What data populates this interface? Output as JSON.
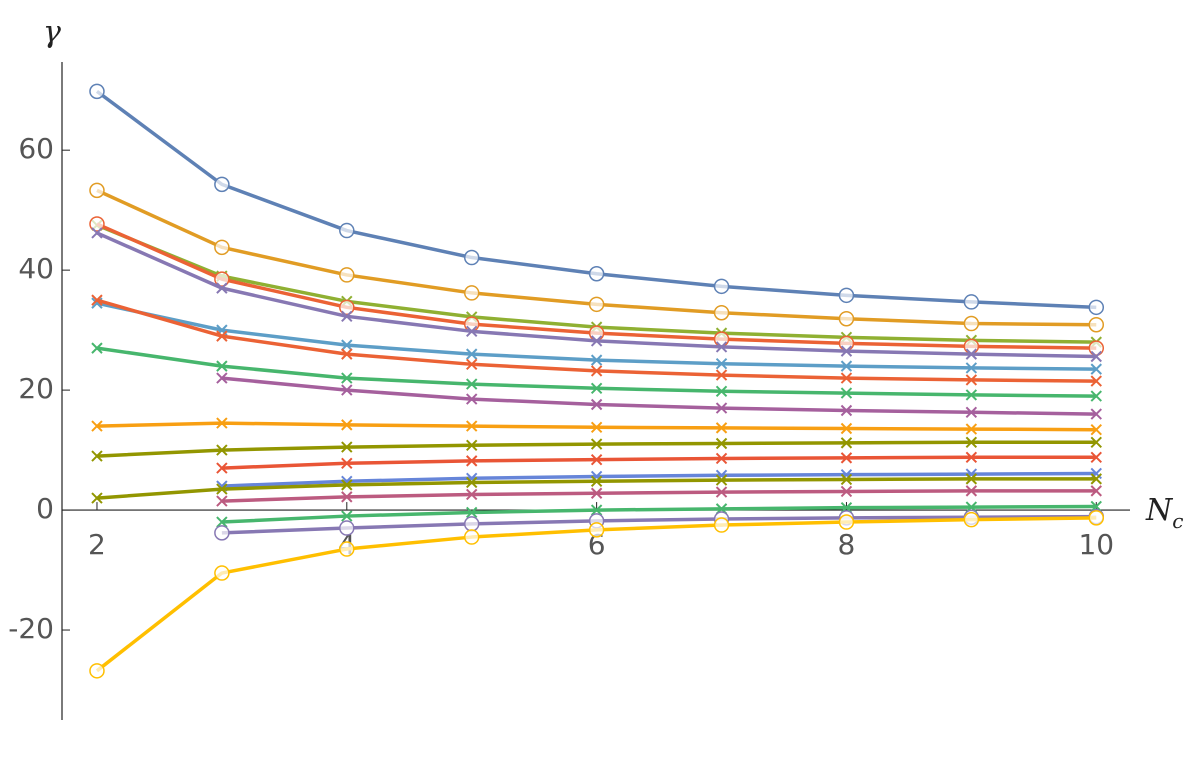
{
  "chart_data": {
    "type": "line",
    "y_label": "γ",
    "x_label": {
      "main": "N",
      "sub": "c"
    },
    "xlim": [
      1.72,
      10.27
    ],
    "ylim": [
      -35,
      74.7
    ],
    "xticks": [
      2,
      4,
      6,
      8,
      10
    ],
    "yticks": [
      -20,
      0,
      20,
      40,
      60
    ],
    "x": [
      2,
      3,
      4,
      5,
      6,
      7,
      8,
      9,
      10
    ],
    "series": [
      {
        "color": "#5e81b5",
        "marker": "circle",
        "values": [
          69.8,
          54.3,
          46.6,
          42.1,
          39.4,
          37.3,
          35.8,
          34.7,
          33.8
        ]
      },
      {
        "color": "#e19c24",
        "marker": "circle",
        "values": [
          53.3,
          43.8,
          39.2,
          36.2,
          34.3,
          32.9,
          31.9,
          31.1,
          30.9
        ]
      },
      {
        "color": "#8fb032",
        "marker": "x",
        "values": [
          47.5,
          39,
          34.8,
          32.2,
          30.5,
          29.5,
          28.8,
          28.3,
          28
        ]
      },
      {
        "color": "#eb6235",
        "marker": "circle",
        "values": [
          47.7,
          38.5,
          33.8,
          31,
          29.5,
          28.5,
          27.8,
          27.3,
          27
        ]
      },
      {
        "color": "#8778b3",
        "marker": "x",
        "values": [
          46.2,
          37,
          32.3,
          29.8,
          28.2,
          27.2,
          26.5,
          26,
          25.6
        ]
      },
      {
        "color": "#5d9ec7",
        "marker": "x",
        "values": [
          34.5,
          30,
          27.5,
          26,
          25,
          24.4,
          24,
          23.7,
          23.5
        ]
      },
      {
        "color": "#eb6235",
        "marker": "x",
        "values": [
          35,
          29,
          26,
          24.3,
          23.2,
          22.5,
          22,
          21.7,
          21.5
        ]
      },
      {
        "color": "#47b66d",
        "marker": "x",
        "values": [
          27,
          24,
          22,
          21,
          20.3,
          19.8,
          19.5,
          19.2,
          19
        ]
      },
      {
        "color": "#a5609d",
        "marker": "x",
        "values": [
          null,
          22,
          20,
          18.5,
          17.6,
          17,
          16.6,
          16.3,
          16
        ]
      },
      {
        "color": "#f89f13",
        "marker": "x",
        "values": [
          14,
          14.5,
          14.2,
          14,
          13.8,
          13.7,
          13.6,
          13.5,
          13.4
        ]
      },
      {
        "color": "#929600",
        "marker": "x",
        "values": [
          9,
          10,
          10.5,
          10.8,
          11,
          11.1,
          11.2,
          11.3,
          11.3
        ]
      },
      {
        "color": "#e95536",
        "marker": "x",
        "values": [
          null,
          7,
          7.8,
          8.2,
          8.4,
          8.6,
          8.7,
          8.8,
          8.8
        ]
      },
      {
        "color": "#6685d9",
        "marker": "x",
        "values": [
          null,
          4,
          4.8,
          5.3,
          5.6,
          5.8,
          5.9,
          6,
          6.1
        ]
      },
      {
        "color": "#929600",
        "marker": "x",
        "values": [
          2,
          3.5,
          4.2,
          4.6,
          4.8,
          5,
          5.1,
          5.2,
          5.2
        ]
      },
      {
        "color": "#bc5b80",
        "marker": "x",
        "values": [
          null,
          1.5,
          2.2,
          2.6,
          2.8,
          3,
          3.1,
          3.2,
          3.2
        ]
      },
      {
        "color": "#47b66d",
        "marker": "x",
        "values": [
          null,
          -2,
          -1,
          -0.4,
          0,
          0.2,
          0.4,
          0.5,
          0.6
        ]
      },
      {
        "color": "#8778b3",
        "marker": "circle",
        "values": [
          null,
          -3.8,
          -3,
          -2.3,
          -1.8,
          -1.5,
          -1.3,
          -1.2,
          -1.1
        ]
      },
      {
        "color": "#ffbf00",
        "marker": "circle",
        "values": [
          -26.8,
          -10.5,
          -6.5,
          -4.5,
          -3.3,
          -2.5,
          -2,
          -1.6,
          -1.3
        ]
      }
    ]
  }
}
